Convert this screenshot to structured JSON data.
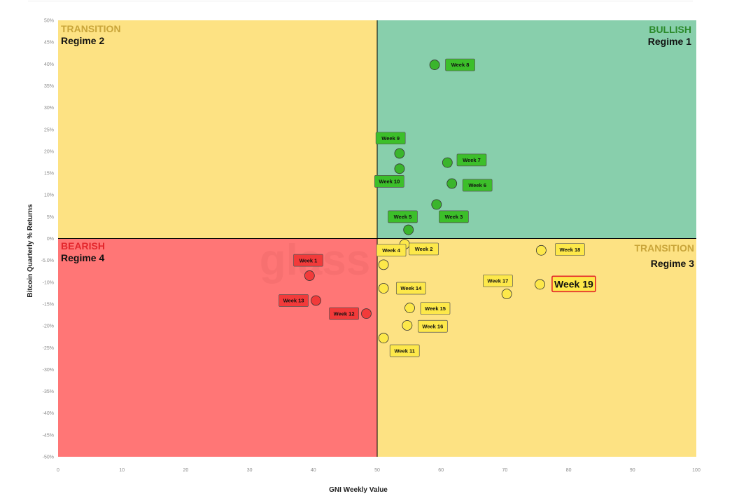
{
  "chart_data": {
    "type": "scatter",
    "xlabel": "GNI  Weekly Value",
    "ylabel": "Bitcoin Quarterly % Returns",
    "xlim": [
      0,
      100
    ],
    "ylim": [
      -50,
      50
    ],
    "x_ticks": [
      "0",
      "10",
      "20",
      "30",
      "40",
      "50",
      "60",
      "70",
      "80",
      "90",
      "100"
    ],
    "y_ticks": [
      "50%",
      "45%",
      "40%",
      "35%",
      "30%",
      "25%",
      "20%",
      "15%",
      "10%",
      "5%",
      "0%",
      "-5.0%",
      "-10%",
      "-15%",
      "-20%",
      "-25%",
      "-30%",
      "-35%",
      "-40%",
      "-45%",
      "-50%"
    ],
    "watermark": "glass",
    "quadrants": [
      {
        "key": "q2",
        "title": "TRANSITION",
        "regime": "Regime 2",
        "fill": "#fde283",
        "title_color": "#c9a53a",
        "align": "left",
        "x": [
          0,
          50
        ],
        "y": [
          0,
          50
        ]
      },
      {
        "key": "q1",
        "title": "BULLISH",
        "regime": "Regime 1",
        "fill": "#88cfac",
        "title_color": "#2b8a2b",
        "align": "right",
        "x": [
          50,
          100
        ],
        "y": [
          0,
          50
        ]
      },
      {
        "key": "q4",
        "title": "BEARISH",
        "regime": "Regime 4",
        "fill": "#ff7676",
        "title_color": "#e3262c",
        "align": "left",
        "x": [
          0,
          50
        ],
        "y": [
          -50,
          0
        ]
      },
      {
        "key": "q3",
        "title": "TRANSITION",
        "regime": "Regime 3",
        "fill": "#fde283",
        "title_color": "#c9a53a",
        "align": "right",
        "x": [
          50,
          100
        ],
        "y": [
          -50,
          0
        ]
      }
    ],
    "colors": {
      "green_point": "#3ab52c",
      "green_label": "#3cbf2a",
      "yellow_point": "#fde84a",
      "yellow_label": "#fde84a",
      "red_point": "#f23a3a",
      "red_label": "#f23a3a",
      "highlight_border": "#e3262c"
    },
    "points": [
      {
        "label": "Week 1",
        "x": 39.4,
        "y": -8.5,
        "group": "red",
        "lx": 39.2,
        "ly": -5.0
      },
      {
        "label": "Week 2",
        "x": 54.3,
        "y": -1.3,
        "group": "yellow",
        "lx": 57.3,
        "ly": -2.4
      },
      {
        "label": "Week 3",
        "x": 59.3,
        "y": 7.8,
        "group": "green",
        "lx": 62.0,
        "ly": 5.0
      },
      {
        "label": "Week 4",
        "x": 51.0,
        "y": -6.0,
        "group": "yellow",
        "lx": 52.2,
        "ly": -2.7
      },
      {
        "label": "Week 5",
        "x": 54.9,
        "y": 2.0,
        "group": "green",
        "lx": 54.0,
        "ly": 5.0
      },
      {
        "label": "Week 6",
        "x": 61.7,
        "y": 12.6,
        "group": "green",
        "lx": 65.7,
        "ly": 12.2
      },
      {
        "label": "Week 7",
        "x": 61.0,
        "y": 17.4,
        "group": "green",
        "lx": 64.8,
        "ly": 18.0
      },
      {
        "label": "Week 8",
        "x": 59.0,
        "y": 39.8,
        "group": "green",
        "lx": 63.0,
        "ly": 39.8
      },
      {
        "label": "Week 9",
        "x": 53.5,
        "y": 19.5,
        "group": "green",
        "lx": 52.1,
        "ly": 23.0
      },
      {
        "label": "Week 10",
        "x": 53.5,
        "y": 16.0,
        "group": "green",
        "lx": 51.9,
        "ly": 13.1
      },
      {
        "label": "Week 11",
        "x": 51.0,
        "y": -22.8,
        "group": "yellow",
        "lx": 54.3,
        "ly": -25.7
      },
      {
        "label": "Week 12",
        "x": 48.3,
        "y": -17.2,
        "group": "red",
        "lx": 44.8,
        "ly": -17.2
      },
      {
        "label": "Week 13",
        "x": 40.4,
        "y": -14.2,
        "group": "red",
        "lx": 36.9,
        "ly": -14.2
      },
      {
        "label": "Week 14",
        "x": 51.0,
        "y": -11.4,
        "group": "yellow",
        "lx": 55.3,
        "ly": -11.4
      },
      {
        "label": "Week 15",
        "x": 55.1,
        "y": -15.9,
        "group": "yellow",
        "lx": 59.1,
        "ly": -16.0
      },
      {
        "label": "Week 16",
        "x": 54.7,
        "y": -19.9,
        "group": "yellow",
        "lx": 58.7,
        "ly": -20.1
      },
      {
        "label": "Week 17",
        "x": 70.3,
        "y": -12.7,
        "group": "yellow",
        "lx": 68.9,
        "ly": -9.7
      },
      {
        "label": "Week 18",
        "x": 75.7,
        "y": -2.7,
        "group": "yellow",
        "lx": 80.2,
        "ly": -2.5
      },
      {
        "label": "Week 19",
        "x": 75.5,
        "y": -10.5,
        "group": "yellow",
        "lx": 80.8,
        "ly": -10.4,
        "highlight": true
      }
    ]
  }
}
